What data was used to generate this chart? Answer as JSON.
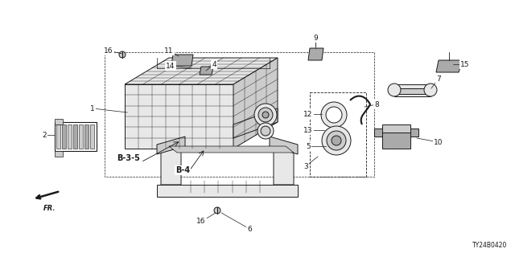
{
  "diagram_id": "TY24B0420",
  "background_color": "#ffffff",
  "fig_width": 6.4,
  "fig_height": 3.2,
  "dpi": 100,
  "line_color": "#1a1a1a",
  "light_fill": "#e8e8e8",
  "mid_fill": "#cccccc",
  "dark_fill": "#aaaaaa",
  "label_fontsize": 6.5,
  "ref_fontsize": 6.5
}
